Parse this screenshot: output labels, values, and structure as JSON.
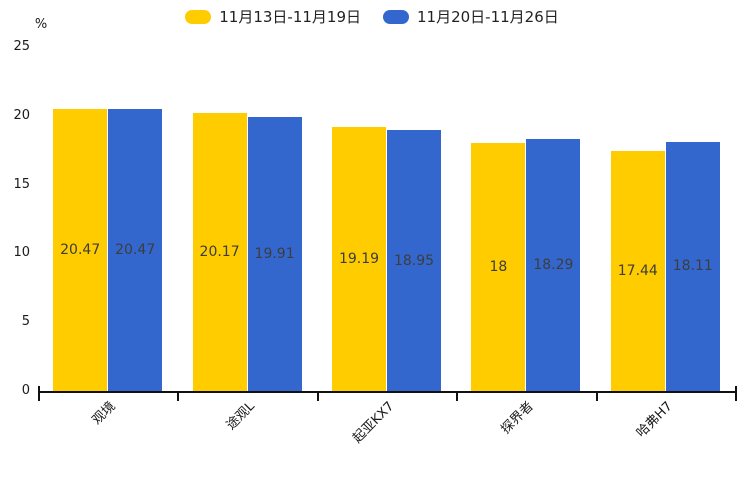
{
  "legend": {
    "items": [
      {
        "label": "11月13日-11月19日",
        "color": "#FFCC00"
      },
      {
        "label": "11月20日-11月26日",
        "color": "#3467CD"
      }
    ]
  },
  "chart_data": {
    "type": "bar",
    "title": "",
    "categories": [
      "观境",
      "途观L",
      "起亚KX7",
      "探界者",
      "哈弗H7"
    ],
    "series": [
      {
        "name": "11月13日-11月19日",
        "color": "#FFCC00",
        "values": [
          20.47,
          20.17,
          19.19,
          18,
          17.44
        ]
      },
      {
        "name": "11月20日-11月26日",
        "color": "#3467CD",
        "values": [
          20.47,
          19.91,
          18.95,
          18.29,
          18.11
        ]
      }
    ],
    "xlabel": "",
    "ylabel": "%",
    "yticks": [
      0,
      5,
      10,
      15,
      20,
      25
    ],
    "ylim": [
      0,
      25
    ],
    "grid": false,
    "legend_position": "top-center",
    "value_label_position": "inside-center",
    "value_label_color": "#3d3d3d",
    "axis_color": "#111111",
    "background": "#ffffff"
  }
}
